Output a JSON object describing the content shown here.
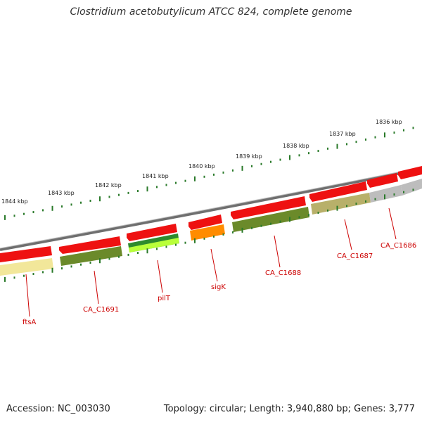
{
  "title": "Clostridium acetobutylicum ATCC 824, complete genome",
  "accession": "Accession: NC_003030",
  "topology_info": "Topology: circular; Length: 3,940,880 bp; Genes: 3,777",
  "colors": {
    "backbone": "#8a8a8a",
    "tick": "#2a7a2a",
    "gene_forward": "#ee1111",
    "label": "#cc0000"
  },
  "scale_ticks": [
    {
      "label": "1844 kbp"
    },
    {
      "label": "1843 kbp"
    },
    {
      "label": "1842 kbp"
    },
    {
      "label": "1841 kbp"
    },
    {
      "label": "1840 kbp"
    },
    {
      "label": "1839 kbp"
    },
    {
      "label": "1838 kbp"
    },
    {
      "label": "1837 kbp"
    },
    {
      "label": "1836 kbp"
    }
  ],
  "genes": [
    {
      "label": "ftsA",
      "color": "#f2e79a"
    },
    {
      "label": "CA_C1691",
      "color": "#6b8a2a"
    },
    {
      "label": "pilT",
      "color": "#2e8b2e"
    },
    {
      "label": "sigK",
      "color": "#ff8c00"
    },
    {
      "label": "CA_C1688",
      "color": "#6b8a2a"
    },
    {
      "label": "CA_C1687",
      "color": "#b8b06a"
    },
    {
      "label": "CA_C1686",
      "color": "#bdbdbd"
    }
  ]
}
